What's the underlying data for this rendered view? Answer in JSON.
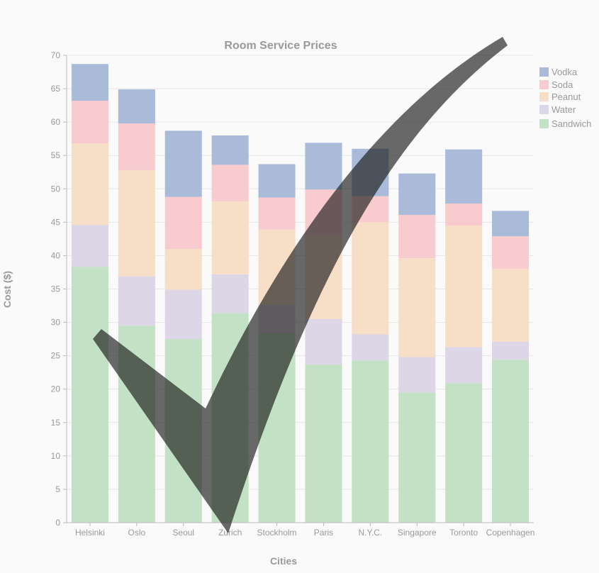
{
  "chart_data": {
    "type": "bar",
    "stacked": true,
    "title": "Room Service Prices",
    "xlabel": "Cities",
    "ylabel": "Cost ($)",
    "ylim": [
      0,
      70
    ],
    "yticks": [
      0,
      5,
      10,
      15,
      20,
      25,
      30,
      35,
      40,
      45,
      50,
      55,
      60,
      65,
      70
    ],
    "grid": true,
    "legend_position": "right",
    "categories": [
      "Helsinki",
      "Oslo",
      "Seoul",
      "Zurich",
      "Stockholm",
      "Paris",
      "N.Y.C.",
      "Singapore",
      "Toronto",
      "Copenhagen"
    ],
    "series": [
      {
        "name": "Sandwich",
        "color": "#c3e1c4",
        "values": [
          38.3,
          29.5,
          27.5,
          31.4,
          28.4,
          23.7,
          24.3,
          19.5,
          20.9,
          24.4
        ]
      },
      {
        "name": "Water",
        "color": "#dcd6e6",
        "values": [
          6.3,
          7.4,
          7.4,
          5.8,
          4.2,
          6.8,
          3.9,
          5.3,
          5.4,
          2.7
        ]
      },
      {
        "name": "Peanut",
        "color": "#f7dec7",
        "values": [
          12.2,
          15.9,
          6.1,
          10.9,
          11.3,
          12.6,
          16.8,
          14.8,
          18.2,
          10.9
        ]
      },
      {
        "name": "Soda",
        "color": "#f8cccf",
        "values": [
          6.4,
          7.0,
          7.8,
          5.5,
          4.8,
          6.8,
          3.9,
          6.5,
          3.3,
          4.9
        ]
      },
      {
        "name": "Vodka",
        "color": "#a9bbd8",
        "values": [
          5.5,
          5.1,
          9.9,
          4.4,
          5.0,
          7.0,
          7.1,
          6.2,
          8.1,
          3.8
        ]
      }
    ],
    "legend_order": [
      "Vodka",
      "Soda",
      "Peanut",
      "Water",
      "Sandwich"
    ],
    "overlay": {
      "type": "checkmark",
      "color": "#1a1a1a",
      "opacity": 0.65
    }
  }
}
